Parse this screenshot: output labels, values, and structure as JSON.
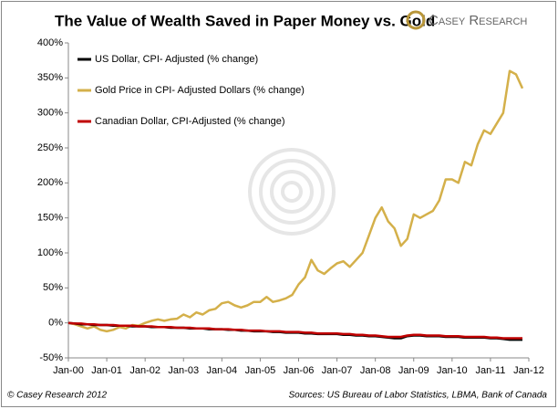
{
  "chart_data": {
    "type": "line",
    "title": "The Value of Wealth Saved in Paper Money vs. Gold",
    "logo": "Casey Research",
    "credit": "© Casey Research 2012",
    "source": "Sources: US Bureau of Labor Statistics, LBMA, Bank of Canada",
    "legend": "top-left",
    "grid": false,
    "ylim": [
      -50,
      400
    ],
    "yticks": [
      {
        "value": -50,
        "label": "-50%"
      },
      {
        "value": 0,
        "label": "0%"
      },
      {
        "value": 50,
        "label": "50%"
      },
      {
        "value": 100,
        "label": "100%"
      },
      {
        "value": 150,
        "label": "150%"
      },
      {
        "value": 200,
        "label": "200%"
      },
      {
        "value": 250,
        "label": "250%"
      },
      {
        "value": 300,
        "label": "300%"
      },
      {
        "value": 350,
        "label": "350%"
      },
      {
        "value": 400,
        "label": "400%"
      }
    ],
    "categories": [
      "Jan-00",
      null,
      null,
      null,
      null,
      null,
      "Jan-01",
      null,
      null,
      null,
      null,
      null,
      "Jan-02",
      null,
      null,
      null,
      null,
      null,
      "Jan-03",
      null,
      null,
      null,
      null,
      null,
      "Jan-04",
      null,
      null,
      null,
      null,
      null,
      "Jan-05",
      null,
      null,
      null,
      null,
      null,
      "Jan-06",
      null,
      null,
      null,
      null,
      null,
      "Jan-07",
      null,
      null,
      null,
      null,
      null,
      "Jan-08",
      null,
      null,
      null,
      null,
      null,
      "Jan-09",
      null,
      null,
      null,
      null,
      null,
      "Jan-10",
      null,
      null,
      null,
      null,
      null,
      "Jan-11",
      null,
      null,
      null,
      null,
      null,
      "Jan-12"
    ],
    "series": [
      {
        "name": "US Dollar, CPI- Adjusted (% change)",
        "color": "#000000",
        "values": [
          0,
          -1,
          -2,
          -2,
          -3,
          -3,
          -3,
          -4,
          -4,
          -4,
          -5,
          -5,
          -5,
          -6,
          -6,
          -6,
          -7,
          -7,
          -7,
          -8,
          -8,
          -8,
          -9,
          -9,
          -9,
          -10,
          -10,
          -11,
          -11,
          -12,
          -12,
          -12,
          -13,
          -13,
          -14,
          -14,
          -14,
          -15,
          -15,
          -16,
          -16,
          -16,
          -16,
          -17,
          -17,
          -18,
          -18,
          -19,
          -19,
          -20,
          -21,
          -22,
          -22,
          -19,
          -18,
          -18,
          -19,
          -19,
          -19,
          -20,
          -20,
          -20,
          -21,
          -21,
          -21,
          -21,
          -22,
          -22,
          -23,
          -24,
          -24,
          -24,
          null
        ]
      },
      {
        "name": "Gold Price in CPI- Adjusted Dollars (% change)",
        "color": "#d4b04a",
        "values": [
          0,
          -2,
          -5,
          -8,
          -5,
          -10,
          -12,
          -10,
          -6,
          -8,
          -3,
          -4,
          0,
          3,
          5,
          3,
          5,
          6,
          12,
          8,
          15,
          12,
          18,
          20,
          28,
          30,
          25,
          22,
          25,
          30,
          30,
          37,
          30,
          32,
          35,
          40,
          55,
          65,
          90,
          75,
          70,
          78,
          85,
          88,
          80,
          90,
          100,
          125,
          150,
          165,
          145,
          135,
          110,
          120,
          155,
          150,
          155,
          160,
          175,
          205,
          205,
          200,
          230,
          225,
          255,
          275,
          270,
          285,
          300,
          360,
          355,
          335,
          null
        ]
      },
      {
        "name": "Canadian Dollar, CPI-Adjusted (% change)",
        "color": "#c00000",
        "values": [
          0,
          -1,
          -1,
          -2,
          -2,
          -3,
          -3,
          -3,
          -4,
          -4,
          -4,
          -5,
          -5,
          -5,
          -6,
          -6,
          -6,
          -7,
          -7,
          -7,
          -8,
          -8,
          -8,
          -9,
          -9,
          -9,
          -10,
          -10,
          -11,
          -11,
          -11,
          -12,
          -12,
          -12,
          -13,
          -13,
          -13,
          -14,
          -14,
          -15,
          -15,
          -15,
          -15,
          -16,
          -16,
          -17,
          -17,
          -18,
          -18,
          -19,
          -20,
          -20,
          -20,
          -18,
          -17,
          -17,
          -18,
          -18,
          -18,
          -19,
          -19,
          -19,
          -20,
          -20,
          -20,
          -20,
          -21,
          -21,
          -22,
          -22,
          -22,
          -22,
          null
        ]
      }
    ]
  }
}
